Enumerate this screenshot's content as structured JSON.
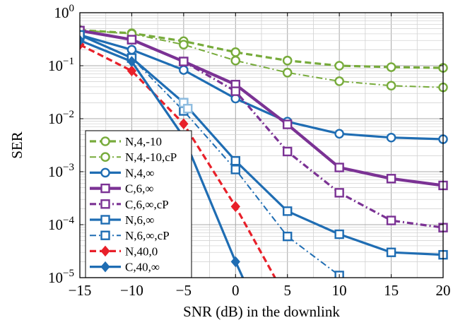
{
  "chart_data": {
    "type": "line",
    "xlabel": "SNR (dB) in the downlink",
    "ylabel": "SER",
    "x_scale": "linear",
    "y_scale": "log",
    "xlim": [
      -15,
      20
    ],
    "ylim": [
      1e-05,
      1
    ],
    "x_ticks": [
      -15,
      -10,
      -5,
      0,
      5,
      10,
      15,
      20
    ],
    "x_tick_labels": [
      "−15",
      "−10",
      "−5",
      "0",
      "5",
      "10",
      "15",
      "20"
    ],
    "y_ticks": [
      1e-05,
      0.0001,
      0.001,
      0.01,
      0.1,
      1
    ],
    "y_tick_labels": [
      {
        "base": "10",
        "exp": "−5"
      },
      {
        "base": "10",
        "exp": "−4"
      },
      {
        "base": "10",
        "exp": "−3"
      },
      {
        "base": "10",
        "exp": "−2"
      },
      {
        "base": "10",
        "exp": "−1"
      },
      {
        "base": "10",
        "exp": "0"
      }
    ],
    "grid": true,
    "legend_position": "bottom-left",
    "series": [
      {
        "name": "N,4,-10",
        "color": "#77ab3b",
        "style": "dashed",
        "marker": "circle",
        "width": 3.2,
        "x": [
          -15,
          -10,
          -5,
          0,
          5,
          10,
          15,
          20
        ],
        "y": [
          0.47,
          0.41,
          0.29,
          0.18,
          0.125,
          0.1,
          0.094,
          0.091
        ]
      },
      {
        "name": "N,4,-10,cP",
        "color": "#77ab3b",
        "style": "dashdot",
        "marker": "circle",
        "width": 2,
        "x": [
          -15,
          -10,
          -5,
          0,
          5,
          10,
          15,
          20
        ],
        "y": [
          0.47,
          0.4,
          0.25,
          0.125,
          0.074,
          0.051,
          0.042,
          0.039
        ]
      },
      {
        "name": "N,4,∞",
        "color": "#1f6db3",
        "style": "solid",
        "marker": "circle",
        "width": 3.2,
        "x": [
          -15,
          -10,
          -5,
          0,
          5,
          10,
          15,
          20
        ],
        "y": [
          0.38,
          0.2,
          0.083,
          0.024,
          0.0088,
          0.0052,
          0.0044,
          0.0041
        ]
      },
      {
        "name": "C,6,∞",
        "color": "#7b3294",
        "style": "solid",
        "marker": "square",
        "width": 4.2,
        "x": [
          -15,
          -10,
          -5,
          0,
          5,
          10,
          15,
          20
        ],
        "y": [
          0.46,
          0.31,
          0.12,
          0.044,
          0.0078,
          0.0012,
          0.00074,
          0.00055
        ]
      },
      {
        "name": "C,6,∞,cP",
        "color": "#7b3294",
        "style": "dashdot",
        "marker": "square",
        "width": 3.2,
        "x": [
          -15,
          -10,
          -5,
          0,
          5,
          10,
          15,
          20
        ],
        "y": [
          0.46,
          0.31,
          0.12,
          0.033,
          0.0024,
          0.0004,
          0.00012,
          8.8e-05
        ]
      },
      {
        "name": "N,6,∞",
        "color": "#1f6db3",
        "style": "solid",
        "marker": "square",
        "width": 3.2,
        "x": [
          -15,
          -10,
          -5,
          0,
          5,
          10,
          15,
          20
        ],
        "y": [
          0.38,
          0.14,
          0.02,
          0.0016,
          0.00018,
          6.6e-05,
          3e-05,
          2.7e-05
        ]
      },
      {
        "name": "N,6,∞,cP",
        "color": "#1f6db3",
        "style": "dashdot",
        "marker": "square",
        "width": 2,
        "x": [
          -15,
          -10,
          -5,
          0,
          5,
          10
        ],
        "y": [
          0.38,
          0.14,
          0.014,
          0.0011,
          6e-05,
          1.1e-05
        ]
      },
      {
        "name": "N,40,0",
        "color": "#e8202a",
        "style": "dashed",
        "marker": "diamond",
        "width": 3.2,
        "x": [
          -15,
          -10,
          -5,
          0,
          3.8
        ],
        "y": [
          0.25,
          0.08,
          0.008,
          0.00022,
          1e-05
        ]
      },
      {
        "name": "C,40,∞",
        "color": "#1f6db3",
        "style": "solid",
        "marker": "diamond",
        "width": 3.2,
        "x": [
          -15,
          -10,
          -5,
          0,
          0.7
        ],
        "y": [
          0.3,
          0.12,
          0.0045,
          2e-05,
          1e-05
        ]
      }
    ],
    "extra_lines": [
      {
        "color": "#8fbde0",
        "style": "solid",
        "marker": "square",
        "width": 3.2,
        "x": [
          -5,
          -4.6
        ],
        "y": [
          0.02,
          0.0155
        ]
      }
    ]
  }
}
